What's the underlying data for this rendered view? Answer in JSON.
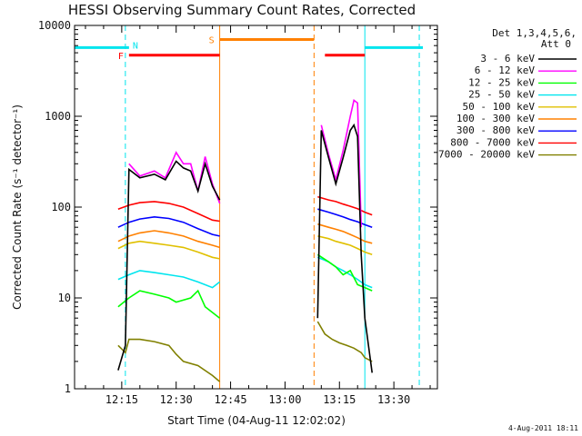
{
  "chart_data": {
    "type": "line",
    "title": "HESSI Observing Summary Count Rates, Corrected",
    "xlabel": "Start Time (04-Aug-11 12:02:02)",
    "ylabel": "Corrected Count Rate (s⁻¹ detector⁻¹)",
    "y_scale": "log",
    "xlim": [
      "12:02",
      "13:42"
    ],
    "ylim": [
      1,
      10000
    ],
    "x_ticks": [
      "12:15",
      "12:30",
      "12:45",
      "13:00",
      "13:15",
      "13:30"
    ],
    "y_ticks": [
      "1",
      "10",
      "100",
      "1000",
      "10000"
    ],
    "legend_header": [
      "Det 1,3,4,5,6,",
      "Att 0"
    ],
    "legend_placement": "right",
    "footer": "4-Aug-2011 18:11",
    "flags": [
      {
        "label": "F",
        "color": "#ff0000",
        "value": 4700,
        "segments": [
          [
            "12:17",
            "12:42"
          ],
          [
            "13:11",
            "13:22"
          ]
        ]
      },
      {
        "label": "N",
        "color": "#00e5ee",
        "value": 5700,
        "segments": [
          [
            "12:02",
            "12:17"
          ],
          [
            "13:22",
            "13:38"
          ]
        ]
      },
      {
        "label": "S",
        "color": "#ff8000",
        "value": 7000,
        "segments": [
          [
            "12:42",
            "13:08"
          ]
        ]
      }
    ],
    "markers": [
      {
        "time": "12:16",
        "color": "#00e5ee",
        "style": "dashed"
      },
      {
        "time": "12:42",
        "color": "#ff8000",
        "style": "solid"
      },
      {
        "time": "13:08",
        "color": "#ff8000",
        "style": "dashed"
      },
      {
        "time": "13:22",
        "color": "#00e5ee",
        "style": "solid"
      },
      {
        "time": "13:37",
        "color": "#00e5ee",
        "style": "dashed"
      }
    ],
    "series": [
      {
        "name": "3 - 6 keV",
        "color": "#000000",
        "segments": [
          [
            [
              "12:14",
              1.6
            ],
            [
              "12:16",
              3
            ],
            [
              "12:17",
              260
            ],
            [
              "12:20",
              210
            ],
            [
              "12:24",
              230
            ],
            [
              "12:27",
              200
            ],
            [
              "12:30",
              320
            ],
            [
              "12:32",
              270
            ],
            [
              "12:34",
              250
            ],
            [
              "12:36",
              150
            ],
            [
              "12:38",
              300
            ],
            [
              "12:40",
              170
            ],
            [
              "12:42",
              120
            ]
          ],
          [
            [
              "13:09",
              6
            ],
            [
              "13:10",
              700
            ],
            [
              "13:12",
              350
            ],
            [
              "13:14",
              180
            ],
            [
              "13:16",
              350
            ],
            [
              "13:18",
              700
            ],
            [
              "13:19",
              800
            ],
            [
              "13:20",
              600
            ],
            [
              "13:21",
              30
            ],
            [
              "13:22",
              6
            ],
            [
              "13:24",
              1.5
            ]
          ]
        ]
      },
      {
        "name": "6 - 12 keV",
        "color": "#ff00ff",
        "segments": [
          [
            [
              "12:17",
              300
            ],
            [
              "12:20",
              220
            ],
            [
              "12:24",
              250
            ],
            [
              "12:27",
              210
            ],
            [
              "12:30",
              400
            ],
            [
              "12:32",
              300
            ],
            [
              "12:34",
              300
            ],
            [
              "12:36",
              150
            ],
            [
              "12:38",
              360
            ],
            [
              "12:40",
              180
            ],
            [
              "12:42",
              110
            ]
          ],
          [
            [
              "13:10",
              800
            ],
            [
              "13:12",
              380
            ],
            [
              "13:14",
              200
            ],
            [
              "13:16",
              420
            ],
            [
              "13:18",
              1000
            ],
            [
              "13:19",
              1500
            ],
            [
              "13:20",
              1400
            ],
            [
              "13:21",
              60
            ]
          ]
        ]
      },
      {
        "name": "12 - 25 keV",
        "color": "#00ff00",
        "segments": [
          [
            [
              "12:14",
              8
            ],
            [
              "12:17",
              10
            ],
            [
              "12:20",
              12
            ],
            [
              "12:24",
              11
            ],
            [
              "12:28",
              10
            ],
            [
              "12:30",
              9
            ],
            [
              "12:34",
              10
            ],
            [
              "12:36",
              12
            ],
            [
              "12:38",
              8
            ],
            [
              "12:42",
              6
            ]
          ],
          [
            [
              "13:09",
              30
            ],
            [
              "13:12",
              25
            ],
            [
              "13:14",
              22
            ],
            [
              "13:16",
              18
            ],
            [
              "13:18",
              20
            ],
            [
              "13:20",
              14
            ],
            [
              "13:22",
              13
            ],
            [
              "13:24",
              12
            ]
          ]
        ]
      },
      {
        "name": "25 - 50 keV",
        "color": "#00e5ee",
        "segments": [
          [
            [
              "12:14",
              16
            ],
            [
              "12:17",
              18
            ],
            [
              "12:20",
              20
            ],
            [
              "12:24",
              19
            ],
            [
              "12:28",
              18
            ],
            [
              "12:32",
              17
            ],
            [
              "12:36",
              15
            ],
            [
              "12:40",
              13
            ],
            [
              "12:42",
              15
            ]
          ],
          [
            [
              "13:09",
              28
            ],
            [
              "13:12",
              25
            ],
            [
              "13:14",
              22
            ],
            [
              "13:16",
              20
            ],
            [
              "13:18",
              18
            ],
            [
              "13:20",
              16
            ],
            [
              "13:22",
              14
            ],
            [
              "13:24",
              13
            ]
          ]
        ]
      },
      {
        "name": "50 - 100 keV",
        "color": "#e0c000",
        "segments": [
          [
            [
              "12:14",
              35
            ],
            [
              "12:17",
              40
            ],
            [
              "12:20",
              42
            ],
            [
              "12:24",
              40
            ],
            [
              "12:28",
              38
            ],
            [
              "12:32",
              36
            ],
            [
              "12:36",
              32
            ],
            [
              "12:40",
              28
            ],
            [
              "12:42",
              27
            ]
          ],
          [
            [
              "13:09",
              48
            ],
            [
              "13:12",
              45
            ],
            [
              "13:14",
              42
            ],
            [
              "13:16",
              40
            ],
            [
              "13:18",
              38
            ],
            [
              "13:20",
              35
            ],
            [
              "13:22",
              32
            ],
            [
              "13:24",
              30
            ]
          ]
        ]
      },
      {
        "name": "100 - 300 keV",
        "color": "#ff8000",
        "segments": [
          [
            [
              "12:14",
              42
            ],
            [
              "12:17",
              48
            ],
            [
              "12:20",
              52
            ],
            [
              "12:24",
              55
            ],
            [
              "12:28",
              52
            ],
            [
              "12:32",
              48
            ],
            [
              "12:36",
              42
            ],
            [
              "12:40",
              38
            ],
            [
              "12:42",
              36
            ]
          ],
          [
            [
              "13:09",
              65
            ],
            [
              "13:12",
              60
            ],
            [
              "13:14",
              57
            ],
            [
              "13:16",
              54
            ],
            [
              "13:18",
              50
            ],
            [
              "13:20",
              46
            ],
            [
              "13:22",
              42
            ],
            [
              "13:24",
              40
            ]
          ]
        ]
      },
      {
        "name": "300 - 800 keV",
        "color": "#0000ff",
        "segments": [
          [
            [
              "12:14",
              60
            ],
            [
              "12:17",
              68
            ],
            [
              "12:20",
              74
            ],
            [
              "12:24",
              78
            ],
            [
              "12:28",
              75
            ],
            [
              "12:32",
              68
            ],
            [
              "12:36",
              58
            ],
            [
              "12:40",
              50
            ],
            [
              "12:42",
              48
            ]
          ],
          [
            [
              "13:09",
              95
            ],
            [
              "13:12",
              88
            ],
            [
              "13:14",
              83
            ],
            [
              "13:16",
              78
            ],
            [
              "13:18",
              73
            ],
            [
              "13:20",
              69
            ],
            [
              "13:22",
              64
            ],
            [
              "13:24",
              60
            ]
          ]
        ]
      },
      {
        "name": "800 - 7000 keV",
        "color": "#ff0000",
        "segments": [
          [
            [
              "12:14",
              95
            ],
            [
              "12:17",
              105
            ],
            [
              "12:20",
              112
            ],
            [
              "12:24",
              115
            ],
            [
              "12:28",
              110
            ],
            [
              "12:32",
              100
            ],
            [
              "12:36",
              85
            ],
            [
              "12:40",
              72
            ],
            [
              "12:42",
              70
            ]
          ],
          [
            [
              "13:09",
              130
            ],
            [
              "13:12",
              120
            ],
            [
              "13:14",
              115
            ],
            [
              "13:16",
              108
            ],
            [
              "13:18",
              102
            ],
            [
              "13:20",
              96
            ],
            [
              "13:22",
              88
            ],
            [
              "13:24",
              82
            ]
          ]
        ]
      },
      {
        "name": "7000 - 20000 keV",
        "color": "#808000",
        "segments": [
          [
            [
              "12:14",
              3
            ],
            [
              "12:16",
              2.5
            ],
            [
              "12:17",
              3.5
            ],
            [
              "12:20",
              3.5
            ],
            [
              "12:24",
              3.3
            ],
            [
              "12:28",
              3
            ],
            [
              "12:30",
              2.4
            ],
            [
              "12:32",
              2
            ],
            [
              "12:36",
              1.8
            ],
            [
              "12:40",
              1.4
            ],
            [
              "12:42",
              1.2
            ]
          ],
          [
            [
              "13:09",
              5.5
            ],
            [
              "13:11",
              4
            ],
            [
              "13:13",
              3.5
            ],
            [
              "13:15",
              3.2
            ],
            [
              "13:17",
              3
            ],
            [
              "13:19",
              2.8
            ],
            [
              "13:21",
              2.5
            ],
            [
              "13:22",
              2.2
            ],
            [
              "13:24",
              2
            ]
          ]
        ]
      }
    ]
  }
}
